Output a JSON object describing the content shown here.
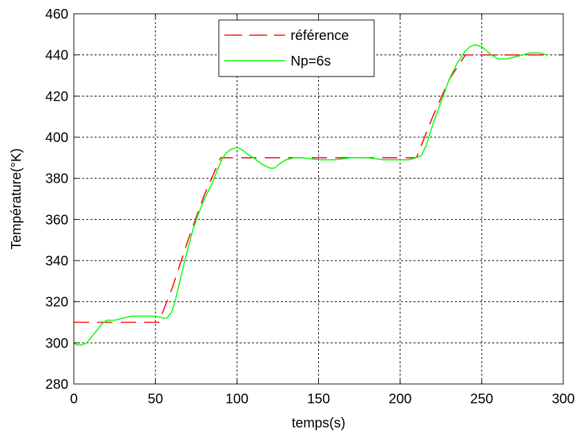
{
  "chart_data": {
    "type": "line",
    "title": "",
    "xlabel": "temps(s)",
    "ylabel": "Température(°K)",
    "xlim": [
      0,
      300
    ],
    "ylim": [
      280,
      460
    ],
    "xticks": [
      "0",
      "50",
      "100",
      "150",
      "200",
      "250",
      "300"
    ],
    "yticks": [
      "280",
      "300",
      "320",
      "340",
      "360",
      "380",
      "400",
      "420",
      "440",
      "460"
    ],
    "grid": true,
    "legend_position": "top-center",
    "series": [
      {
        "name": "référence",
        "color": "#ff0000",
        "style": "dashed",
        "x": [
          0,
          52,
          60,
          70,
          80,
          90,
          210,
          220,
          230,
          240,
          290
        ],
        "y": [
          310,
          310,
          326,
          350,
          372,
          390,
          390,
          410,
          428,
          440,
          440
        ]
      },
      {
        "name": "Np=6s",
        "color": "#00ff00",
        "style": "solid",
        "x": [
          0,
          2,
          5,
          8,
          11,
          14,
          17,
          20,
          25,
          30,
          35,
          40,
          45,
          50,
          55,
          57,
          60,
          62,
          65,
          68,
          70,
          73,
          76,
          80,
          85,
          90,
          93,
          96,
          100,
          103,
          106,
          110,
          115,
          120,
          123,
          126,
          130,
          135,
          140,
          150,
          160,
          170,
          180,
          190,
          200,
          205,
          210,
          213,
          216,
          220,
          225,
          230,
          235,
          240,
          243,
          246,
          250,
          253,
          256,
          260,
          265,
          270,
          275,
          280,
          285,
          290
        ],
        "y": [
          300,
          299,
          299,
          300,
          303,
          306,
          309,
          311,
          311,
          312,
          313,
          313,
          313,
          313,
          312,
          312,
          315,
          320,
          330,
          340,
          346,
          355,
          362,
          370,
          378,
          388,
          392,
          394,
          395,
          394,
          392,
          390,
          387,
          385,
          385,
          387,
          389,
          390,
          390,
          389,
          389,
          390,
          390,
          389,
          389,
          389,
          390,
          391,
          396,
          406,
          417,
          428,
          436,
          442,
          444,
          445,
          444,
          442,
          440,
          438,
          438,
          439,
          440,
          441,
          441,
          440
        ]
      }
    ]
  }
}
